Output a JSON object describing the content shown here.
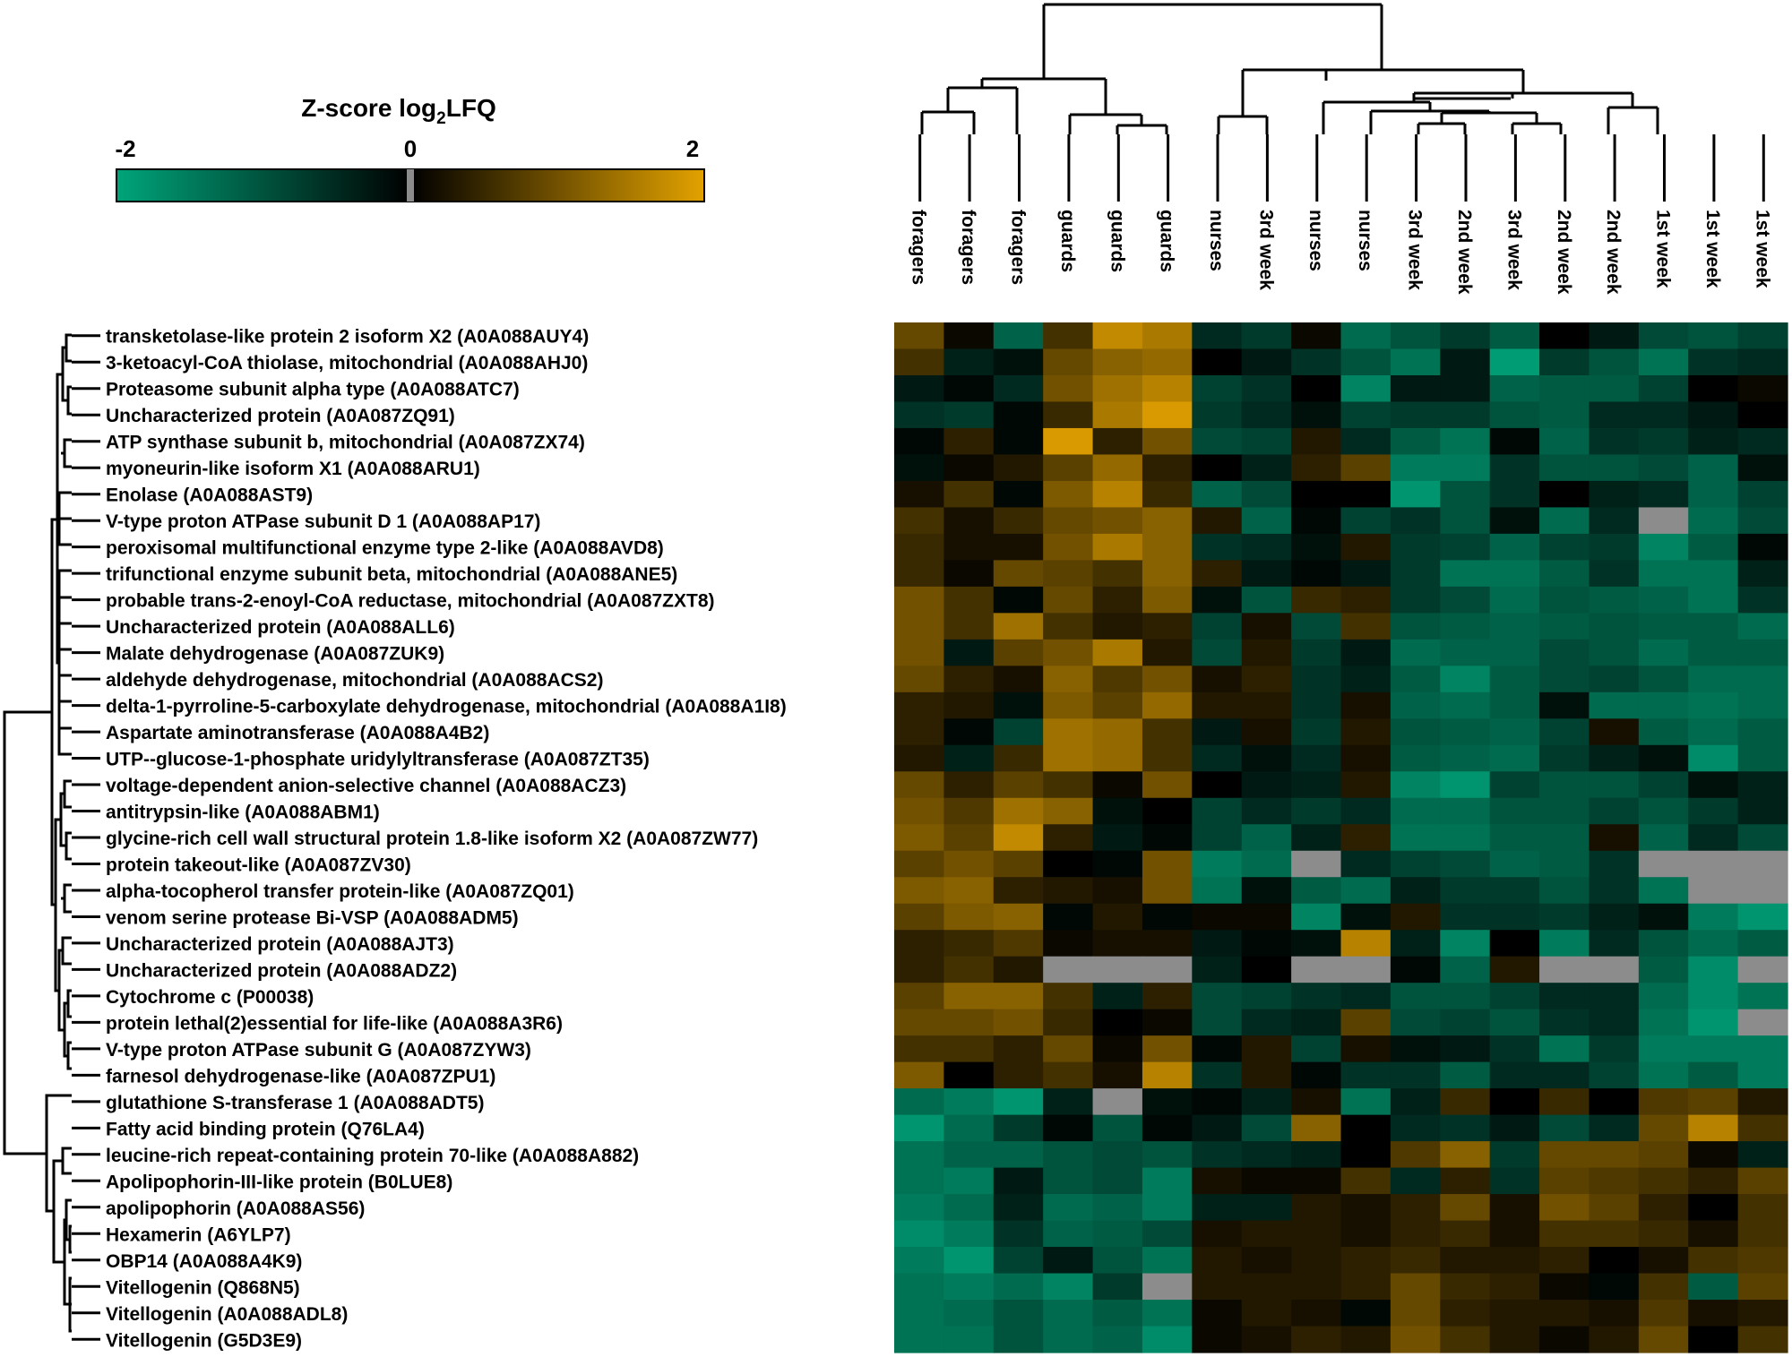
{
  "colorbar": {
    "title_main": "Z-score log",
    "title_sub": "2",
    "title_tail": "LFQ",
    "ticks": [
      "-2",
      "0",
      "2"
    ],
    "low_color": "#00A57A",
    "mid_color": "#000000",
    "high_color": "#E3A200",
    "missing_color": "#8C8C8C"
  },
  "chart_data": {
    "type": "heatmap",
    "value_range": [
      -2,
      2
    ],
    "columns": [
      "foragers",
      "foragers",
      "foragers",
      "guards",
      "guards",
      "guards",
      "nurses",
      "3rd week",
      "nurses",
      "nurses",
      "3rd week",
      "2nd week",
      "3rd week",
      "2nd week",
      "2nd week",
      "1st week",
      "1st week",
      "1st week"
    ],
    "rows": [
      "transketolase-like protein 2 isoform X2 (A0A088AUY4)",
      "3-ketoacyl-CoA thiolase, mitochondrial (A0A088AHJ0)",
      "Proteasome subunit alpha type (A0A088ATC7)",
      "Uncharacterized protein (A0A087ZQ91)",
      "ATP synthase subunit b, mitochondrial (A0A087ZX74)",
      "myoneurin-like isoform X1 (A0A088ARU1)",
      "Enolase (A0A088AST9)",
      "V-type proton ATPase subunit D 1 (A0A088AP17)",
      "peroxisomal multifunctional enzyme type 2-like (A0A088AVD8)",
      "trifunctional enzyme subunit beta, mitochondrial (A0A088ANE5)",
      "probable trans-2-enoyl-CoA reductase, mitochondrial (A0A087ZXT8)",
      "Uncharacterized protein (A0A088ALL6)",
      "Malate dehydrogenase (A0A087ZUK9)",
      "aldehyde dehydrogenase, mitochondrial (A0A088ACS2)",
      "delta-1-pyrroline-5-carboxylate dehydrogenase, mitochondrial (A0A088A1I8)",
      "Aspartate aminotransferase (A0A088A4B2)",
      "UTP--glucose-1-phosphate uridylyltransferase (A0A087ZT35)",
      "voltage-dependent anion-selective channel (A0A088ACZ3)",
      "antitrypsin-like (A0A088ABM1)",
      "glycine-rich cell wall structural protein 1.8-like isoform X2 (A0A087ZW77)",
      "protein takeout-like (A0A087ZV30)",
      "alpha-tocopherol transfer protein-like (A0A087ZQ01)",
      "venom serine protease Bi-VSP (A0A088ADM5)",
      "Uncharacterized protein (A0A088AJT3)",
      "Uncharacterized protein (A0A088ADZ2)",
      "Cytochrome c (P00038)",
      "protein lethal(2)essential for life-like (A0A088A3R6)",
      "V-type proton ATPase subunit G (A0A087ZYW3)",
      "farnesol dehydrogenase-like (A0A087ZPU1)",
      "glutathione S-transferase 1 (A0A088ADT5)",
      "Fatty acid binding protein (Q76LA4)",
      "leucine-rich repeat-containing protein 70-like (A0A088A882)",
      "Apolipophorin-III-like protein (B0LUE8)",
      "apolipophorin (A0A088AS56)",
      "Hexamerin (A6YLP7)",
      "OBP14 (A0A088A4K9)",
      "Vitellogenin (Q868N5)",
      "Vitellogenin (A0A088ADL8)",
      "Vitellogenin (G5D3E9)"
    ],
    "values": [
      [
        0.9,
        0.1,
        -1.2,
        0.6,
        1.7,
        1.5,
        -0.5,
        -0.7,
        0.1,
        -1.3,
        -1.0,
        -0.7,
        -1.1,
        0.0,
        -0.3,
        -0.9,
        -1.0,
        -0.8
      ],
      [
        0.6,
        -0.4,
        -0.2,
        0.9,
        1.2,
        1.3,
        0.0,
        -0.3,
        -0.6,
        -1.0,
        -1.4,
        -0.3,
        -1.9,
        -0.7,
        -1.0,
        -1.4,
        -0.6,
        -0.5
      ],
      [
        -0.3,
        -0.1,
        -0.5,
        1.0,
        1.4,
        1.6,
        -0.8,
        -0.6,
        0.0,
        -1.6,
        -0.3,
        -0.3,
        -1.2,
        -1.1,
        -1.1,
        -0.8,
        0.0,
        0.1
      ],
      [
        -0.6,
        -0.7,
        -0.1,
        0.5,
        1.5,
        1.9,
        -0.7,
        -0.5,
        -0.2,
        -0.8,
        -0.7,
        -0.7,
        -1.0,
        -1.1,
        -0.5,
        -0.5,
        -0.3,
        0.0
      ],
      [
        -0.1,
        0.4,
        -0.1,
        1.9,
        0.4,
        1.0,
        -0.9,
        -0.8,
        0.3,
        -0.5,
        -1.1,
        -1.4,
        -0.1,
        -1.2,
        -0.6,
        -0.7,
        -0.4,
        -0.5
      ],
      [
        -0.2,
        0.1,
        0.3,
        0.8,
        1.3,
        0.4,
        0.0,
        -0.4,
        0.4,
        0.8,
        -1.5,
        -1.5,
        -0.6,
        -1.0,
        -1.0,
        -0.9,
        -1.2,
        -0.2
      ],
      [
        0.2,
        0.6,
        -0.1,
        1.1,
        1.6,
        0.5,
        -1.2,
        -0.9,
        0.0,
        0.0,
        -1.8,
        -1.0,
        -0.6,
        0.0,
        -0.4,
        -0.5,
        -1.2,
        -0.8
      ],
      [
        0.6,
        0.2,
        0.5,
        0.9,
        1.0,
        1.2,
        0.3,
        -1.2,
        -0.1,
        -0.8,
        -0.6,
        -1.0,
        -0.2,
        -1.3,
        -0.5,
        null,
        -1.3,
        -0.9
      ],
      [
        0.5,
        0.2,
        0.2,
        1.0,
        1.5,
        1.2,
        -0.6,
        -0.5,
        -0.2,
        0.3,
        -0.7,
        -0.8,
        -1.2,
        -0.8,
        -0.7,
        -1.6,
        -1.1,
        -0.1
      ],
      [
        0.5,
        0.1,
        0.9,
        0.8,
        0.6,
        1.2,
        0.4,
        -0.3,
        -0.1,
        -0.3,
        -0.7,
        -1.4,
        -1.4,
        -1.1,
        -0.6,
        -1.4,
        -1.4,
        -0.4
      ],
      [
        1.0,
        0.6,
        -0.1,
        0.9,
        0.4,
        1.1,
        -0.2,
        -1.0,
        0.5,
        0.4,
        -0.7,
        -0.9,
        -1.3,
        -1.0,
        -1.1,
        -1.2,
        -1.4,
        -0.6
      ],
      [
        1.0,
        0.6,
        1.4,
        0.6,
        0.3,
        0.4,
        -0.8,
        0.2,
        -0.9,
        0.6,
        -1.0,
        -1.1,
        -1.2,
        -1.1,
        -1.0,
        -1.1,
        -1.1,
        -1.3
      ],
      [
        1.0,
        -0.3,
        0.8,
        1.0,
        1.5,
        0.3,
        -0.9,
        0.3,
        -0.7,
        -0.3,
        -1.3,
        -1.2,
        -1.2,
        -0.9,
        -1.0,
        -1.3,
        -1.1,
        -1.1
      ],
      [
        0.9,
        0.4,
        0.2,
        1.2,
        0.7,
        1.0,
        0.2,
        0.4,
        -0.6,
        -0.4,
        -1.1,
        -1.6,
        -1.1,
        -0.9,
        -0.8,
        -1.0,
        -1.3,
        -1.3
      ],
      [
        0.4,
        0.3,
        -0.2,
        1.1,
        0.8,
        1.3,
        0.3,
        0.3,
        -0.6,
        0.2,
        -1.2,
        -1.3,
        -1.1,
        -0.2,
        -1.3,
        -1.3,
        -1.4,
        -1.3
      ],
      [
        0.4,
        -0.1,
        -0.8,
        1.4,
        1.3,
        0.6,
        -0.3,
        0.2,
        -0.7,
        0.3,
        -1.0,
        -1.1,
        -1.2,
        -0.8,
        0.2,
        -1.1,
        -1.3,
        -1.1
      ],
      [
        0.3,
        -0.4,
        0.5,
        1.4,
        1.3,
        0.6,
        -0.5,
        -0.2,
        -0.5,
        0.2,
        -1.1,
        -1.2,
        -1.3,
        -0.7,
        -0.4,
        -0.2,
        -1.7,
        -1.1
      ],
      [
        0.9,
        0.4,
        0.8,
        0.6,
        0.1,
        1.0,
        0.0,
        -0.3,
        -0.4,
        0.3,
        -1.6,
        -1.8,
        -0.8,
        -1.0,
        -1.0,
        -0.8,
        -0.2,
        -0.4
      ],
      [
        1.0,
        0.7,
        1.4,
        1.2,
        -0.2,
        0.0,
        -0.8,
        -0.5,
        -0.7,
        -0.5,
        -1.3,
        -1.3,
        -1.0,
        -1.0,
        -0.8,
        -1.0,
        -0.7,
        -0.4
      ],
      [
        1.1,
        0.8,
        1.7,
        0.4,
        -0.3,
        -0.1,
        -0.8,
        -1.2,
        -0.4,
        0.4,
        -1.4,
        -1.4,
        -1.1,
        -1.1,
        0.2,
        -1.2,
        -0.5,
        -0.9
      ],
      [
        0.8,
        1.0,
        0.8,
        0.0,
        -0.1,
        1.0,
        -1.5,
        -1.3,
        null,
        -0.5,
        -0.8,
        -0.9,
        -1.2,
        -1.1,
        -0.6,
        null,
        null,
        null
      ],
      [
        1.1,
        1.2,
        0.4,
        0.3,
        0.2,
        1.0,
        -1.4,
        -0.2,
        -1.1,
        -1.3,
        -0.4,
        -0.7,
        -0.7,
        -1.0,
        -0.6,
        -1.4,
        null,
        null
      ],
      [
        0.8,
        1.1,
        1.2,
        -0.1,
        0.3,
        -0.1,
        0.1,
        0.1,
        -1.6,
        -0.2,
        0.3,
        -0.6,
        -0.6,
        -0.7,
        -0.4,
        -0.2,
        -1.5,
        -1.8
      ],
      [
        0.4,
        0.5,
        0.7,
        0.1,
        0.2,
        0.2,
        -0.3,
        -0.1,
        -0.2,
        1.6,
        -0.4,
        -1.6,
        0.0,
        -1.5,
        -0.5,
        -1.0,
        -1.3,
        -1.1
      ],
      [
        0.4,
        0.6,
        0.3,
        null,
        null,
        null,
        -0.4,
        0.0,
        null,
        null,
        -0.1,
        -1.2,
        0.3,
        null,
        null,
        -1.1,
        -1.7,
        null
      ],
      [
        0.8,
        1.2,
        1.2,
        0.6,
        -0.4,
        0.4,
        -0.9,
        -0.8,
        -0.6,
        -0.5,
        -1.0,
        -1.0,
        -0.8,
        -0.5,
        -0.5,
        -1.3,
        -1.7,
        -1.4
      ],
      [
        0.9,
        0.9,
        1.0,
        0.5,
        0.0,
        0.1,
        -0.9,
        -0.5,
        -0.4,
        0.8,
        -0.9,
        -0.8,
        -1.0,
        -0.6,
        -0.5,
        -1.4,
        -1.8,
        null
      ],
      [
        0.6,
        0.6,
        0.4,
        0.9,
        0.1,
        1.0,
        -0.1,
        0.3,
        -0.8,
        0.2,
        -0.2,
        -0.3,
        -0.6,
        -1.4,
        -0.7,
        -1.5,
        -1.5,
        -1.5
      ],
      [
        1.1,
        0.0,
        0.4,
        0.6,
        0.2,
        1.6,
        -0.6,
        0.3,
        -0.1,
        -0.6,
        -0.6,
        -1.1,
        -0.5,
        -0.5,
        -0.8,
        -1.4,
        -1.1,
        -1.5
      ],
      [
        -1.3,
        -1.5,
        -1.8,
        -0.4,
        null,
        -0.2,
        -0.1,
        -0.4,
        0.2,
        -1.4,
        -0.4,
        0.5,
        0.0,
        0.5,
        0.0,
        0.7,
        0.8,
        0.3
      ],
      [
        -1.8,
        -1.3,
        -0.7,
        -0.1,
        -1.0,
        -0.1,
        -0.3,
        -0.9,
        1.2,
        0.0,
        -0.5,
        -0.6,
        -0.3,
        -0.9,
        -0.5,
        0.9,
        1.6,
        0.6
      ],
      [
        -1.4,
        -1.2,
        -1.2,
        -1.0,
        -0.9,
        -1.0,
        -0.6,
        -0.5,
        -0.4,
        0.0,
        0.7,
        1.2,
        -0.7,
        0.9,
        0.9,
        0.8,
        0.1,
        -0.4
      ],
      [
        -1.4,
        -1.5,
        -0.3,
        -1.0,
        -0.9,
        -1.5,
        0.2,
        0.1,
        0.1,
        0.6,
        -0.5,
        0.4,
        -0.6,
        0.8,
        0.7,
        0.6,
        0.4,
        0.8
      ],
      [
        -1.5,
        -1.3,
        -0.4,
        -1.3,
        -1.2,
        -1.5,
        -0.4,
        -0.4,
        0.3,
        0.2,
        0.4,
        0.9,
        0.2,
        1.0,
        0.8,
        0.4,
        0.0,
        0.6
      ],
      [
        -1.7,
        -1.5,
        -0.6,
        -1.2,
        -1.1,
        -0.9,
        0.2,
        0.3,
        0.3,
        0.2,
        0.4,
        0.5,
        0.2,
        0.6,
        0.6,
        0.5,
        0.2,
        0.6
      ],
      [
        -1.5,
        -1.8,
        -0.8,
        -0.3,
        -1.0,
        -1.4,
        0.3,
        0.2,
        0.3,
        0.4,
        0.5,
        0.3,
        0.3,
        0.4,
        0.0,
        0.2,
        0.6,
        0.7
      ],
      [
        -1.4,
        -1.5,
        -1.3,
        -1.6,
        -0.7,
        null,
        0.3,
        0.3,
        0.3,
        0.4,
        0.9,
        0.5,
        0.4,
        0.1,
        -0.1,
        0.6,
        -1.1,
        0.8
      ],
      [
        -1.4,
        -1.3,
        -1.0,
        -1.3,
        -1.1,
        -1.4,
        0.1,
        0.3,
        0.2,
        -0.1,
        0.9,
        0.4,
        0.3,
        0.3,
        0.2,
        0.7,
        0.2,
        0.3
      ],
      [
        -1.4,
        -1.4,
        -1.0,
        -1.3,
        -1.2,
        -1.7,
        0.1,
        0.2,
        0.4,
        0.3,
        1.0,
        0.6,
        0.3,
        0.1,
        0.3,
        0.9,
        0.0,
        0.6
      ]
    ]
  }
}
